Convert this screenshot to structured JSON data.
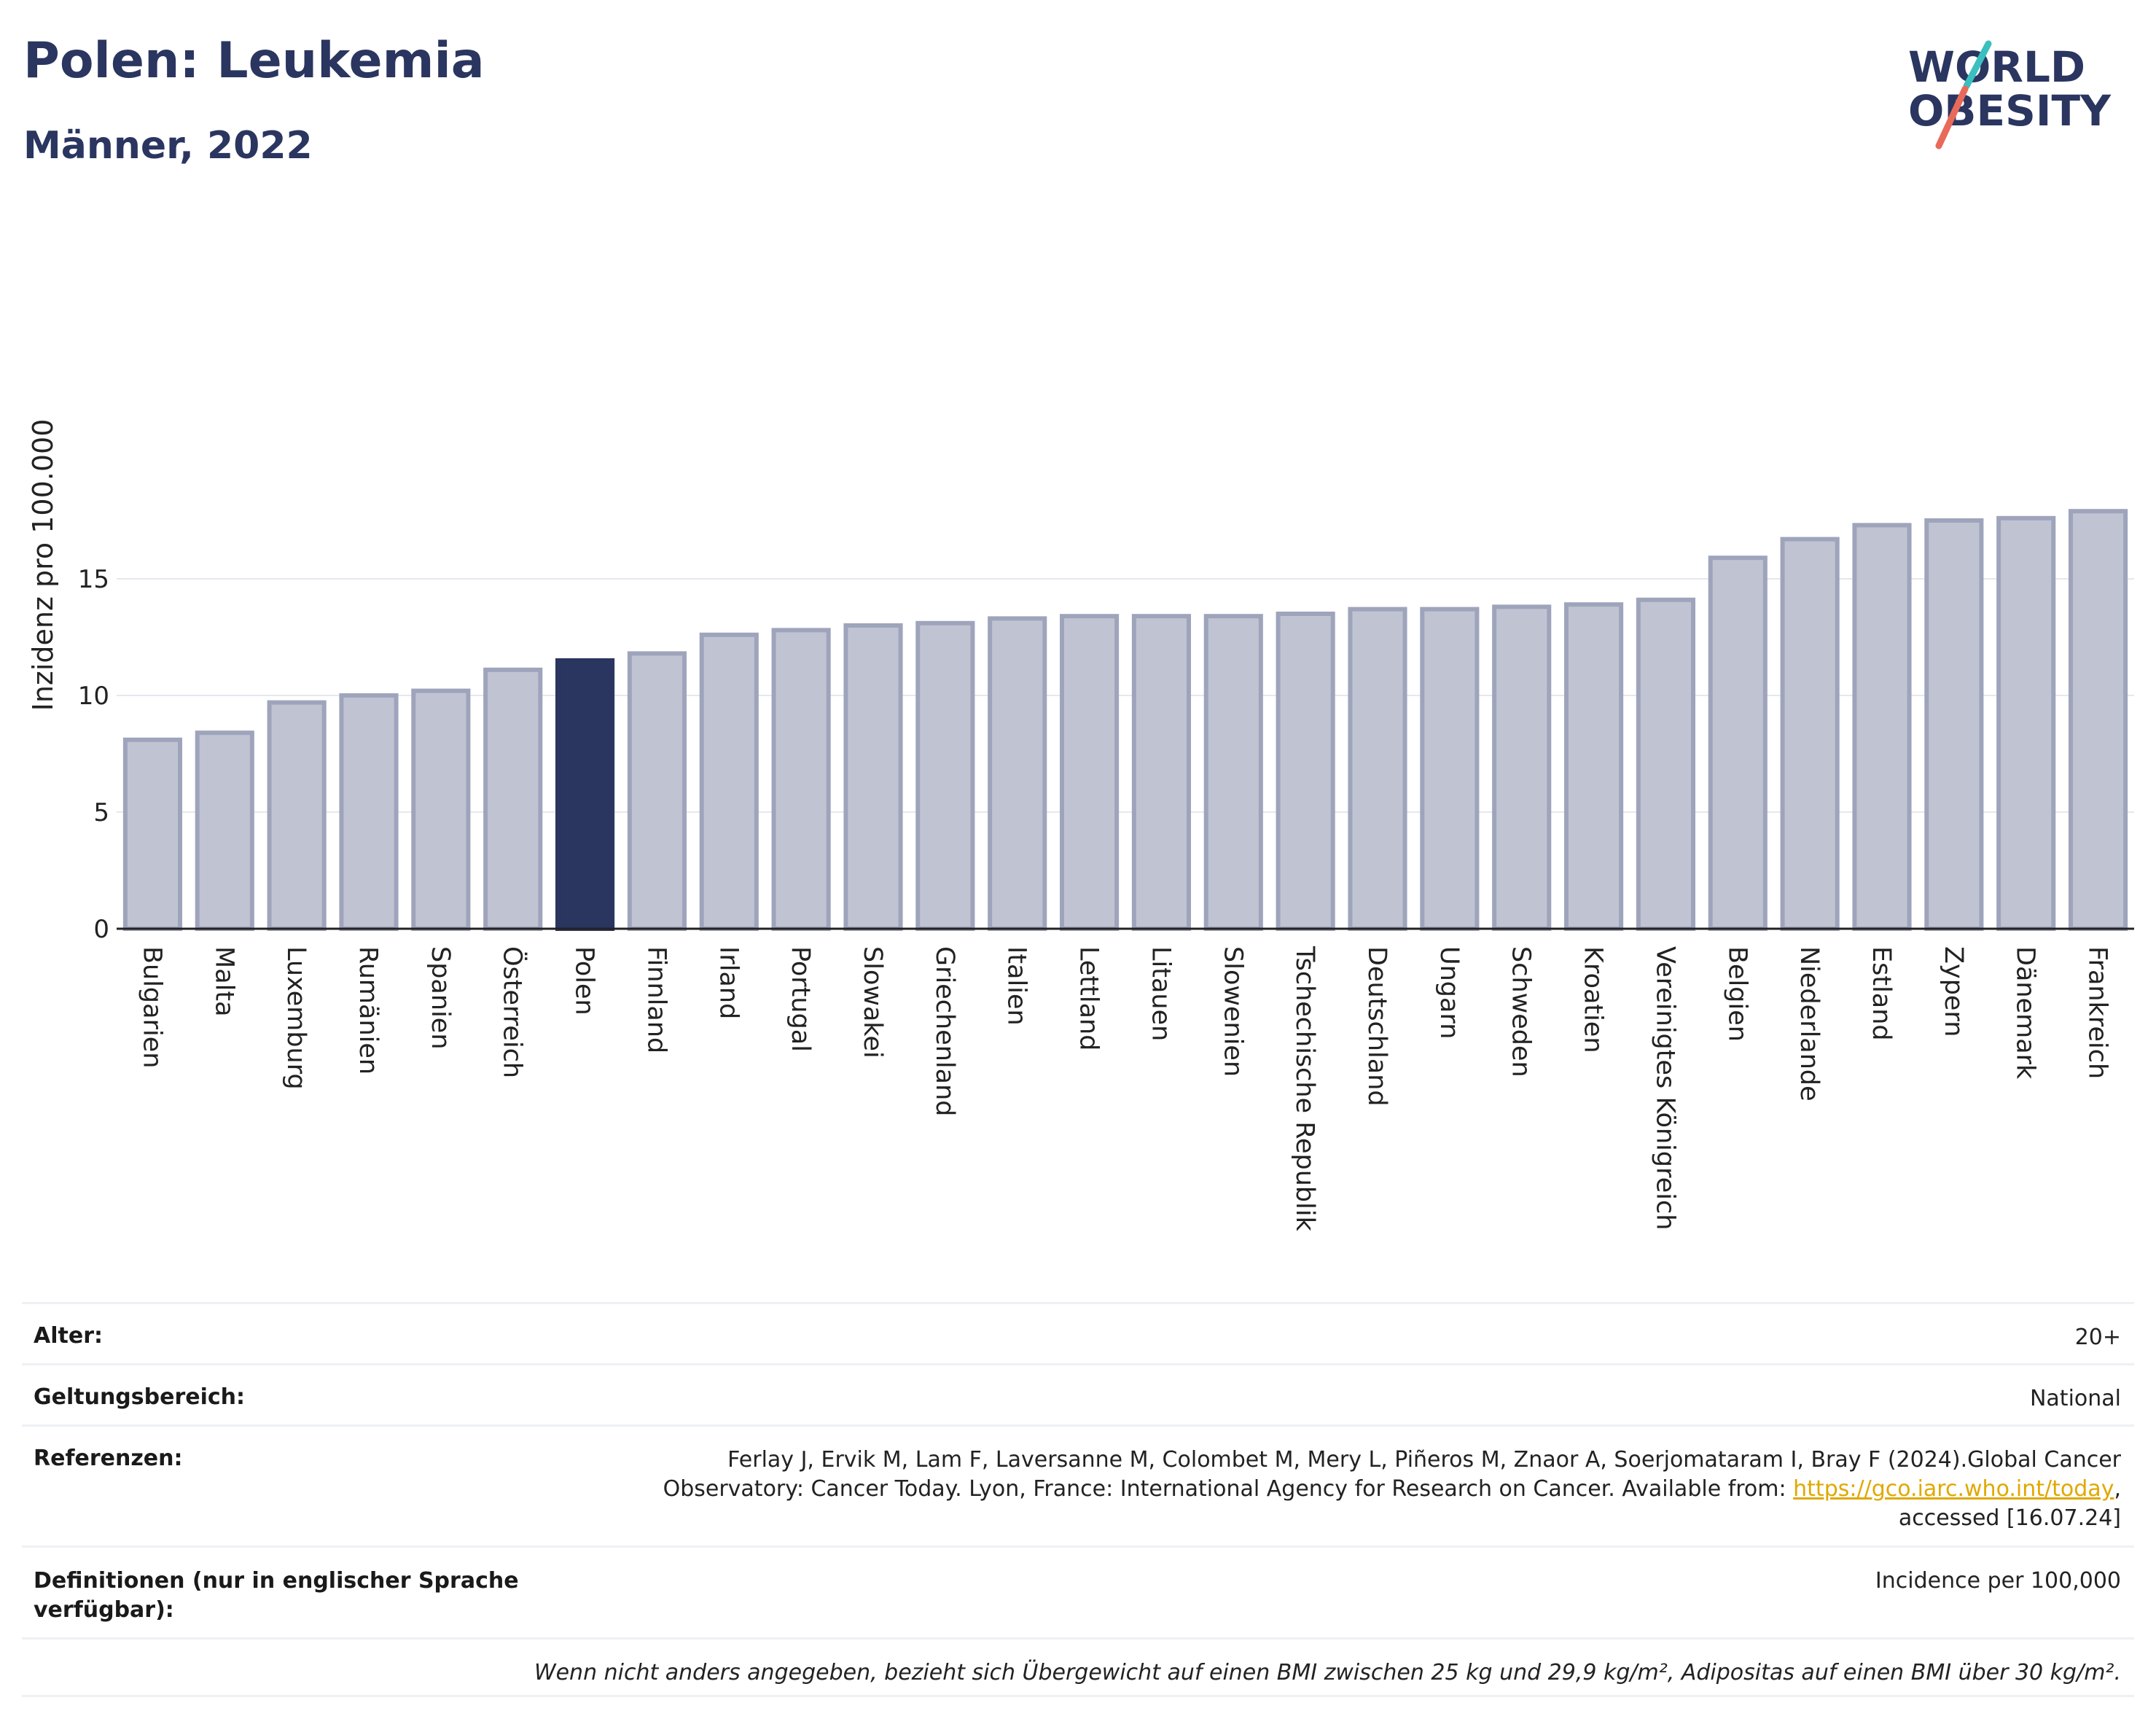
{
  "header": {
    "title": "Polen: Leukemia",
    "subtitle": "Männer, 2022",
    "logo_line1": "WORLD",
    "logo_line2": "OBESITY"
  },
  "colors": {
    "highlight": "#2a3560",
    "bar": "#c0c4d2",
    "bar_border": "#9ea4bb",
    "logo_accent_teal": "#3bbfbf",
    "logo_accent_red": "#e86a5a",
    "link": "#e0a800"
  },
  "chart_data": {
    "type": "bar",
    "title": "Polen: Leukemia",
    "subtitle": "Männer, 2022",
    "ylabel": "Inzidenz pro 100.000",
    "xlabel": "",
    "ylim": [
      0,
      18.5
    ],
    "yticks": [
      0,
      5,
      10,
      15
    ],
    "grid": true,
    "highlight": "Polen",
    "categories": [
      "Bulgarien",
      "Malta",
      "Luxemburg",
      "Rumänien",
      "Spanien",
      "Österreich",
      "Polen",
      "Finnland",
      "Irland",
      "Portugal",
      "Slowakei",
      "Griechenland",
      "Italien",
      "Lettland",
      "Litauen",
      "Slowenien",
      "Tschechische Republik",
      "Deutschland",
      "Ungarn",
      "Schweden",
      "Kroatien",
      "Vereinigtes Königreich",
      "Belgien",
      "Niederlande",
      "Estland",
      "Zypern",
      "Dänemark",
      "Frankreich"
    ],
    "values": [
      8.1,
      8.4,
      9.7,
      10.0,
      10.2,
      11.1,
      11.5,
      11.8,
      12.6,
      12.8,
      13.0,
      13.1,
      13.3,
      13.4,
      13.4,
      13.4,
      13.5,
      13.7,
      13.7,
      13.8,
      13.9,
      14.1,
      15.9,
      16.7,
      17.3,
      17.5,
      17.6,
      17.9
    ]
  },
  "info": {
    "age_label": "Alter:",
    "age_value": "20+",
    "scope_label": "Geltungsbereich:",
    "scope_value": "National",
    "ref_label": "Referenzen:",
    "ref_line1": "Ferlay J, Ervik M, Lam F, Laversanne M, Colombet M, Mery L, Piñeros M, Znaor A, Soerjomataram I, Bray F (2024).Global Cancer",
    "ref_line2_pre": "Observatory: Cancer Today. Lyon, France: International Agency for Research on Cancer. Available from: ",
    "ref_link": "https://gco.iarc.who.int/today",
    "ref_line2_post": ",",
    "ref_line3": "accessed [16.07.24]",
    "def_label_1": "Definitionen (nur in englischer Sprache",
    "def_label_2": "verfügbar):",
    "def_value": "Incidence per 100,000",
    "note": "Wenn nicht anders angegeben, bezieht sich Übergewicht auf einen BMI zwischen 25 kg und 29,9 kg/m², Adipositas auf einen BMI über 30 kg/m²."
  }
}
